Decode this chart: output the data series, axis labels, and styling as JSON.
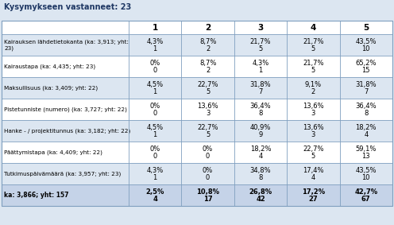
{
  "title": "Kysymykseen vastanneet: 23",
  "col_headers": [
    "1",
    "2",
    "3",
    "4",
    "5"
  ],
  "rows": [
    {
      "label": "Kairauksen lähdetietokanta (ka: 3,913; yht:\n23)",
      "values": [
        [
          "4,3%",
          "1"
        ],
        [
          "8,7%",
          "2"
        ],
        [
          "21,7%",
          "5"
        ],
        [
          "21,7%",
          "5"
        ],
        [
          "43,5%",
          "10"
        ]
      ]
    },
    {
      "label": "Kairaustapa (ka: 4,435; yht: 23)",
      "values": [
        [
          "0%",
          "0"
        ],
        [
          "8,7%",
          "2"
        ],
        [
          "4,3%",
          "1"
        ],
        [
          "21,7%",
          "5"
        ],
        [
          "65,2%",
          "15"
        ]
      ]
    },
    {
      "label": "Maksullisuus (ka: 3,409; yht: 22)",
      "values": [
        [
          "4,5%",
          "1"
        ],
        [
          "22,7%",
          "5"
        ],
        [
          "31,8%",
          "7"
        ],
        [
          "9,1%",
          "2"
        ],
        [
          "31,8%",
          "7"
        ]
      ]
    },
    {
      "label": "Pistetunniste (numero) (ka: 3,727; yht: 22)",
      "values": [
        [
          "0%",
          "0"
        ],
        [
          "13,6%",
          "3"
        ],
        [
          "36,4%",
          "8"
        ],
        [
          "13,6%",
          "3"
        ],
        [
          "36,4%",
          "8"
        ]
      ]
    },
    {
      "label": "Hanke - / projektitunnus (ka: 3,182; yht: 22)",
      "values": [
        [
          "4,5%",
          "1"
        ],
        [
          "22,7%",
          "5"
        ],
        [
          "40,9%",
          "9"
        ],
        [
          "13,6%",
          "3"
        ],
        [
          "18,2%",
          "4"
        ]
      ]
    },
    {
      "label": "Päättymistapa (ka: 4,409; yht: 22)",
      "values": [
        [
          "0%",
          "0"
        ],
        [
          "0%",
          "0"
        ],
        [
          "18,2%",
          "4"
        ],
        [
          "22,7%",
          "5"
        ],
        [
          "59,1%",
          "13"
        ]
      ]
    },
    {
      "label": "Tutkimuspäivämäärä (ka: 3,957; yht: 23)",
      "values": [
        [
          "4,3%",
          "1"
        ],
        [
          "0%",
          "0"
        ],
        [
          "34,8%",
          "8"
        ],
        [
          "17,4%",
          "4"
        ],
        [
          "43,5%",
          "10"
        ]
      ]
    }
  ],
  "footer_label": "ka: 3,866; yht: 157",
  "footer_values": [
    [
      "2,5%",
      "4"
    ],
    [
      "10,8%",
      "17"
    ],
    [
      "26,8%",
      "42"
    ],
    [
      "17,2%",
      "27"
    ],
    [
      "42,7%",
      "67"
    ]
  ],
  "bg_color": "#dce6f1",
  "title_bg": "#dce6f1",
  "row_bg_even": "#dce6f1",
  "row_bg_odd": "#ffffff",
  "footer_bg": "#c5d3e8",
  "grid_color": "#7f9fbf",
  "title_color": "#1f3864",
  "text_color": "#000000"
}
